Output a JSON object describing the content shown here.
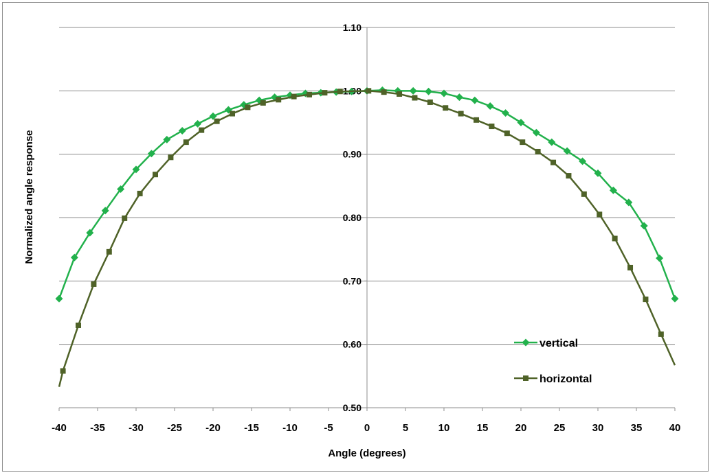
{
  "chart_data": {
    "type": "line",
    "title": "",
    "xlabel": "Angle (degrees)",
    "ylabel": "Normalized angle response",
    "xlim": [
      -40,
      40
    ],
    "ylim": [
      0.5,
      1.1
    ],
    "x_ticks": [
      "-40",
      "-35",
      "-30",
      "-25",
      "-20",
      "-15",
      "-10",
      "-5",
      "0",
      "5",
      "10",
      "15",
      "20",
      "25",
      "30",
      "35",
      "40"
    ],
    "y_ticks": [
      "0.50",
      "0.60",
      "0.70",
      "0.80",
      "0.90",
      "1.00",
      "1.10"
    ],
    "grid": "horizontal",
    "legend_position": "bottom-right",
    "series": [
      {
        "name": "vertical",
        "color": "#22b14c",
        "marker": "diamond",
        "points": [
          [
            -40.0,
            0.672
          ],
          [
            -38.0,
            0.737
          ],
          [
            -36.0,
            0.776
          ],
          [
            -34.0,
            0.811
          ],
          [
            -32.0,
            0.845
          ],
          [
            -30.0,
            0.876
          ],
          [
            -28.0,
            0.901
          ],
          [
            -26.0,
            0.923
          ],
          [
            -24.0,
            0.937
          ],
          [
            -22.0,
            0.948
          ],
          [
            -20.0,
            0.96
          ],
          [
            -18.0,
            0.97
          ],
          [
            -16.0,
            0.978
          ],
          [
            -14.0,
            0.985
          ],
          [
            -12.0,
            0.99
          ],
          [
            -10.0,
            0.993
          ],
          [
            -8.0,
            0.996
          ],
          [
            -6.0,
            0.997
          ],
          [
            -4.0,
            0.998
          ],
          [
            -2.0,
            0.999
          ],
          [
            0.0,
            1.0
          ],
          [
            2.0,
            1.001
          ],
          [
            4.0,
            1.0
          ],
          [
            6.0,
            1.0
          ],
          [
            8.0,
            0.999
          ],
          [
            10.0,
            0.996
          ],
          [
            12.0,
            0.99
          ],
          [
            14.0,
            0.985
          ],
          [
            16.0,
            0.976
          ],
          [
            18.0,
            0.965
          ],
          [
            20.0,
            0.95
          ],
          [
            22.0,
            0.934
          ],
          [
            24.0,
            0.919
          ],
          [
            26.0,
            0.905
          ],
          [
            28.0,
            0.889
          ],
          [
            30.0,
            0.87
          ],
          [
            32.0,
            0.843
          ],
          [
            34.0,
            0.824
          ],
          [
            36.0,
            0.787
          ],
          [
            38.0,
            0.736
          ],
          [
            40.0,
            0.672
          ]
        ]
      },
      {
        "name": "horizontal",
        "color": "#4f6228",
        "marker": "square",
        "points": [
          [
            -40.0,
            0.533
          ],
          [
            -39.5,
            0.558
          ],
          [
            -37.5,
            0.63
          ],
          [
            -35.5,
            0.695
          ],
          [
            -33.5,
            0.746
          ],
          [
            -31.5,
            0.799
          ],
          [
            -29.5,
            0.838
          ],
          [
            -27.5,
            0.868
          ],
          [
            -25.5,
            0.895
          ],
          [
            -23.5,
            0.919
          ],
          [
            -21.5,
            0.938
          ],
          [
            -19.5,
            0.952
          ],
          [
            -17.5,
            0.964
          ],
          [
            -15.5,
            0.974
          ],
          [
            -13.5,
            0.981
          ],
          [
            -11.5,
            0.986
          ],
          [
            -9.5,
            0.991
          ],
          [
            -7.5,
            0.994
          ],
          [
            -5.5,
            0.997
          ],
          [
            -3.5,
            0.999
          ],
          [
            0.2,
            1.0
          ],
          [
            2.2,
            0.998
          ],
          [
            4.2,
            0.995
          ],
          [
            6.2,
            0.989
          ],
          [
            8.2,
            0.982
          ],
          [
            10.2,
            0.973
          ],
          [
            12.2,
            0.964
          ],
          [
            14.2,
            0.954
          ],
          [
            16.2,
            0.944
          ],
          [
            18.2,
            0.933
          ],
          [
            20.2,
            0.919
          ],
          [
            22.2,
            0.904
          ],
          [
            24.2,
            0.887
          ],
          [
            26.2,
            0.866
          ],
          [
            28.2,
            0.837
          ],
          [
            30.2,
            0.805
          ],
          [
            32.2,
            0.767
          ],
          [
            34.2,
            0.721
          ],
          [
            36.2,
            0.671
          ],
          [
            38.2,
            0.616
          ],
          [
            40.0,
            0.567
          ]
        ]
      }
    ]
  }
}
